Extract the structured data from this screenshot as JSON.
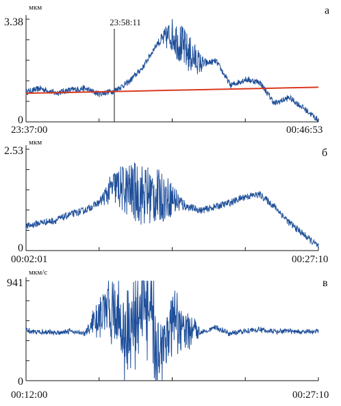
{
  "colors": {
    "series": "#1f4f9a",
    "trend": "#d9381e",
    "axis": "#111111"
  },
  "chart_data": [
    {
      "type": "line",
      "panel_label": "а",
      "unit": "мкм",
      "y_max_label": "3.38",
      "y_min_label": "0",
      "ylim": [
        0,
        3.38
      ],
      "x_start_label": "23:37:00",
      "x_end_label": "00:46:53",
      "marker_label": "23:58:11",
      "marker_x": 0.302,
      "x": [
        0.0,
        0.05,
        0.1,
        0.15,
        0.2,
        0.25,
        0.3,
        0.35,
        0.4,
        0.45,
        0.5,
        0.55,
        0.6,
        0.65,
        0.7,
        0.75,
        0.8,
        0.85,
        0.9,
        0.95,
        1.0
      ],
      "series": [
        {
          "name": "",
          "values": [
            0.98,
            1.1,
            0.95,
            1.05,
            1.1,
            0.92,
            1.02,
            1.3,
            1.8,
            2.6,
            2.9,
            2.3,
            1.9,
            2.0,
            1.2,
            1.4,
            1.3,
            0.6,
            0.8,
            0.45,
            0.05
          ]
        },
        {
          "name": "",
          "values": [
            0.94,
            0.95,
            0.96,
            0.97,
            0.98,
            0.99,
            1.0,
            1.01,
            1.02,
            1.03,
            1.04,
            1.05,
            1.06,
            1.07,
            1.08,
            1.09,
            1.1,
            1.11,
            1.12,
            1.13,
            1.14
          ]
        }
      ]
    },
    {
      "type": "line",
      "panel_label": "б",
      "unit": "мкм",
      "y_max_label": "2.53",
      "y_min_label": "0",
      "ylim": [
        0,
        2.53
      ],
      "x_start_label": "00:02:01",
      "x_end_label": "00:27:10",
      "x": [
        0.0,
        0.05,
        0.1,
        0.15,
        0.2,
        0.25,
        0.3,
        0.35,
        0.4,
        0.45,
        0.5,
        0.55,
        0.6,
        0.65,
        0.7,
        0.75,
        0.8,
        0.85,
        0.9,
        0.95,
        1.0
      ],
      "series": [
        {
          "name": "",
          "values": [
            0.6,
            0.7,
            0.75,
            0.9,
            1.0,
            1.2,
            1.6,
            1.5,
            1.4,
            1.35,
            1.3,
            1.1,
            1.0,
            1.1,
            1.2,
            1.35,
            1.4,
            1.1,
            0.7,
            0.4,
            0.1
          ]
        }
      ]
    },
    {
      "type": "line",
      "panel_label": "в",
      "unit": "мкм/с",
      "y_max_label": "941",
      "y_min_label": "0",
      "ylim": [
        0,
        941
      ],
      "x_start_label": "00:12:00",
      "x_end_label": "00:27:10",
      "x": [
        0.0,
        0.05,
        0.1,
        0.15,
        0.2,
        0.25,
        0.3,
        0.35,
        0.4,
        0.45,
        0.5,
        0.55,
        0.6,
        0.65,
        0.7,
        0.75,
        0.8,
        0.85,
        0.9,
        0.95,
        1.0
      ],
      "series": [
        {
          "name": "",
          "values": [
            470,
            460,
            450,
            470,
            440,
            600,
            700,
            350,
            820,
            300,
            500,
            480,
            460,
            500,
            440,
            470,
            480,
            460,
            470,
            455,
            465
          ]
        }
      ]
    }
  ]
}
